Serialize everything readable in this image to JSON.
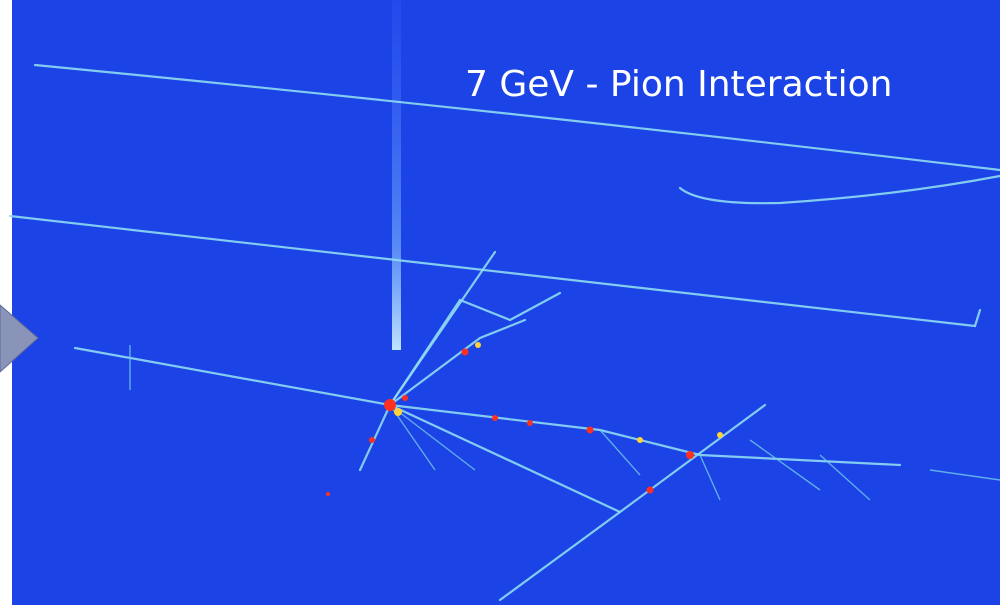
{
  "title": "7 GeV - Pion Interaction"
}
